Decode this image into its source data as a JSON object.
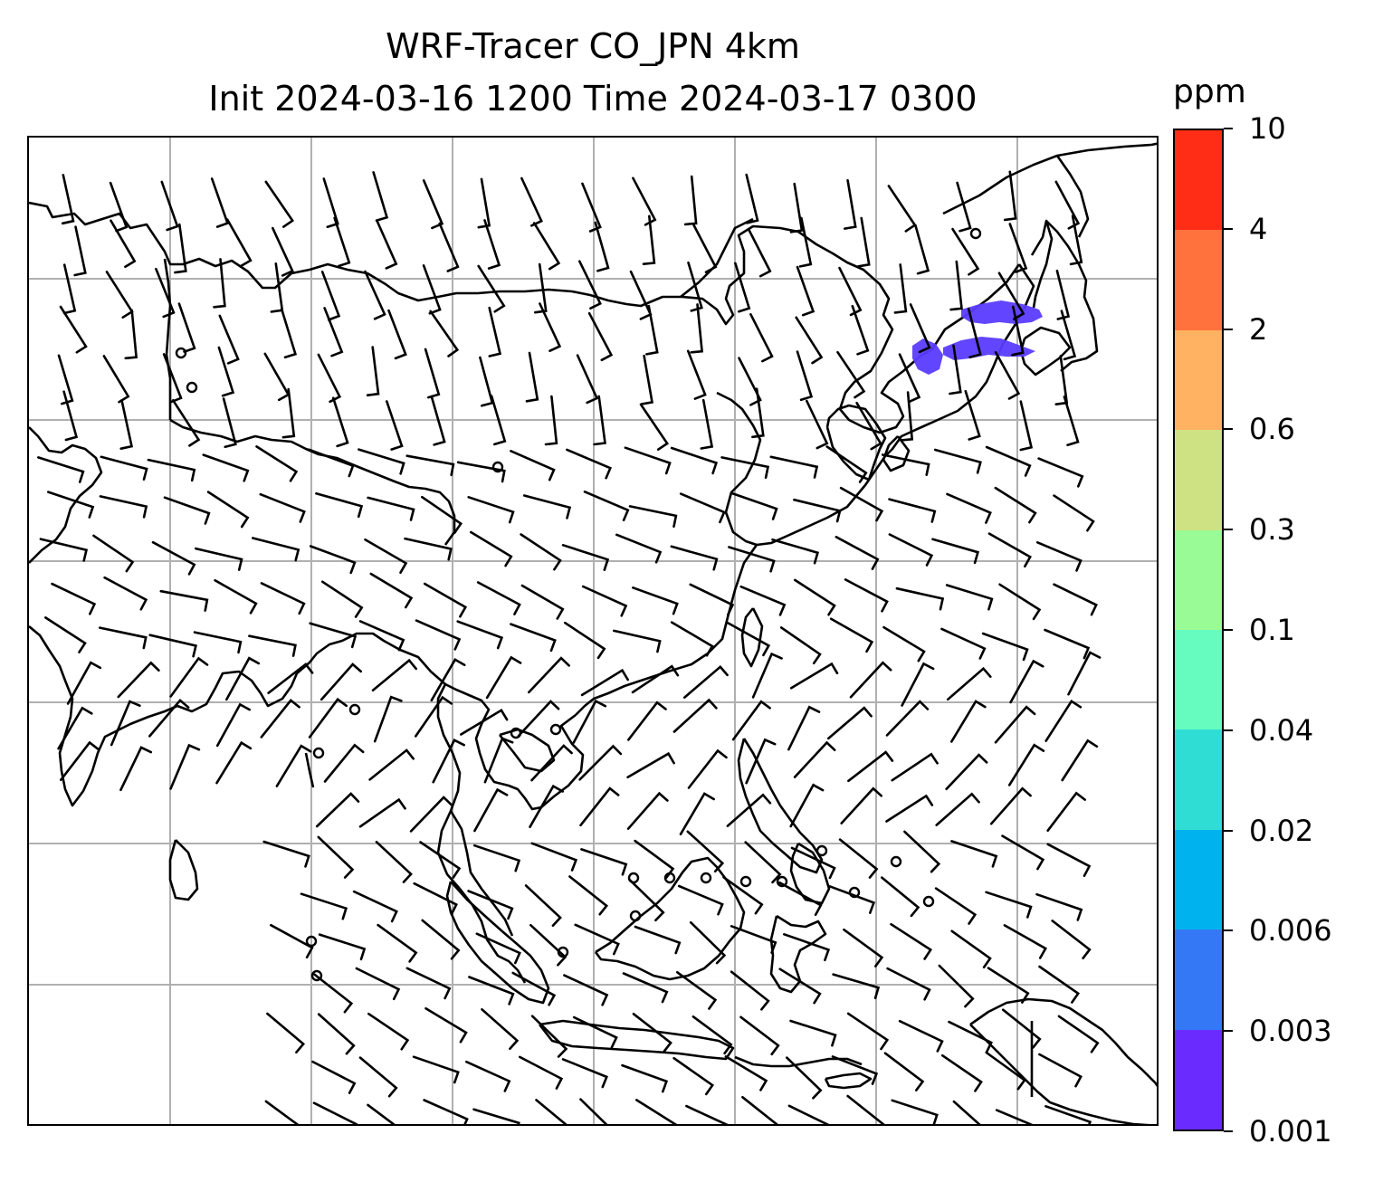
{
  "title": {
    "line1": "WRF-Tracer CO_JPN 4km",
    "line2": "Init 2024-03-16 1200 Time 2024-03-17 0300"
  },
  "colorbar": {
    "unit": "ppm",
    "ticks": [
      "0.001",
      "0.003",
      "0.006",
      "0.02",
      "0.04",
      "0.1",
      "0.3",
      "0.6",
      "2",
      "4",
      "10"
    ],
    "colors": [
      "#6a2bff",
      "#3578f5",
      "#00b3ee",
      "#30ddd5",
      "#67fcbf",
      "#99fb95",
      "#cfe283",
      "#feb262",
      "#ff723d",
      "#ff2d16"
    ]
  },
  "map": {
    "grid": "on",
    "plume_color": "#5a3dff",
    "coastline_color": "#000000",
    "barb_color": "#000000"
  }
}
